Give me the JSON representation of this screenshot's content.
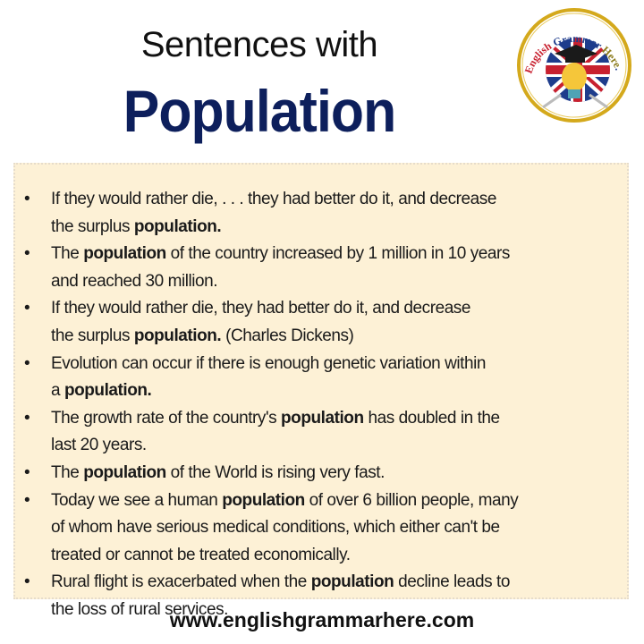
{
  "title": {
    "line1": "Sentences with",
    "line2": "Population"
  },
  "logo": {
    "text": "English Grammar Here.Com",
    "colors": {
      "ring": "#d4a91c",
      "red": "#c8202f",
      "blue": "#1e3c8c"
    }
  },
  "colors": {
    "box_background": "#fdf1d6",
    "title_accent": "#0d1f5c"
  },
  "bullet": "•",
  "sentences": [
    {
      "lines": [
        [
          {
            "t": "If they would rather die, . . . they had better do it, and decrease",
            "b": false
          }
        ],
        [
          {
            "t": "the surplus ",
            "b": false
          },
          {
            "t": "population",
            "b": true
          },
          {
            "t": ".",
            "b": true
          }
        ]
      ]
    },
    {
      "lines": [
        [
          {
            "t": "The ",
            "b": false
          },
          {
            "t": "population",
            "b": true
          },
          {
            "t": " of the country increased by 1 million in 10 years",
            "b": false
          }
        ],
        [
          {
            "t": "and reached 30 million.",
            "b": false
          }
        ]
      ]
    },
    {
      "lines": [
        [
          {
            "t": "If they would rather die, they had better do it, and decrease",
            "b": false
          }
        ],
        [
          {
            "t": "the surplus ",
            "b": false
          },
          {
            "t": "population",
            "b": true
          },
          {
            "t": ".",
            "b": true
          },
          {
            "t": " (Charles Dickens)",
            "b": false
          }
        ]
      ]
    },
    {
      "lines": [
        [
          {
            "t": "Evolution can occur if there is enough genetic variation within",
            "b": false
          }
        ],
        [
          {
            "t": "a ",
            "b": false
          },
          {
            "t": "population",
            "b": true
          },
          {
            "t": ".",
            "b": true
          }
        ]
      ]
    },
    {
      "lines": [
        [
          {
            "t": "The growth rate of the country's ",
            "b": false
          },
          {
            "t": "population",
            "b": true
          },
          {
            "t": " has doubled in the",
            "b": false
          }
        ],
        [
          {
            "t": "last 20 years.",
            "b": false
          }
        ]
      ]
    },
    {
      "lines": [
        [
          {
            "t": "The ",
            "b": false
          },
          {
            "t": "population",
            "b": true
          },
          {
            "t": " of the World is rising very fast.",
            "b": false
          }
        ]
      ]
    },
    {
      "lines": [
        [
          {
            "t": "Today we see a human ",
            "b": false
          },
          {
            "t": "population",
            "b": true
          },
          {
            "t": " of over 6 billion people, many",
            "b": false
          }
        ],
        [
          {
            "t": "of whom have serious medical conditions, which either can't be",
            "b": false
          }
        ],
        [
          {
            "t": "treated or cannot be treated economically.",
            "b": false
          }
        ]
      ]
    },
    {
      "lines": [
        [
          {
            "t": "Rural flight is exacerbated when the ",
            "b": false
          },
          {
            "t": "population",
            "b": true
          },
          {
            "t": " decline leads to",
            "b": false
          }
        ],
        [
          {
            "t": "the loss of rural services.",
            "b": false
          }
        ]
      ]
    }
  ],
  "footer": "www.englishgrammarhere.com"
}
